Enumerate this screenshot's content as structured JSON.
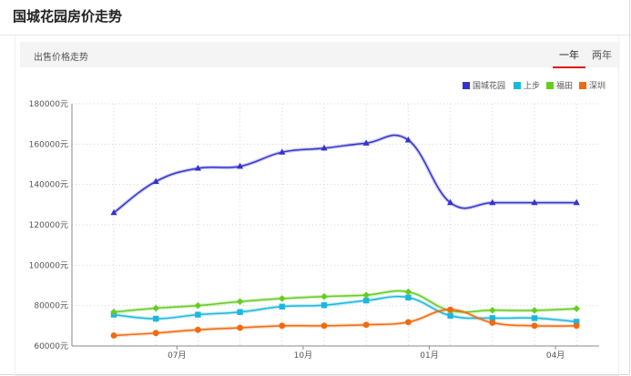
{
  "header": {
    "title": "国城花园房价走势"
  },
  "toolbar": {
    "subtitle": "出售价格走势",
    "tabs": [
      {
        "label": "一年",
        "active": true
      },
      {
        "label": "两年",
        "active": false
      }
    ],
    "accent_color": "#dd1111"
  },
  "chart_data": {
    "type": "line",
    "title": "",
    "xlabel": "",
    "ylabel": "",
    "ylim": [
      60000,
      180000
    ],
    "yticks": [
      60000,
      80000,
      100000,
      120000,
      140000,
      160000,
      180000
    ],
    "y_tick_suffix": "元",
    "x_index": [
      0,
      1,
      2,
      3,
      4,
      5,
      6,
      7,
      8,
      9,
      10,
      11
    ],
    "x_tick_labels": [
      {
        "index": 1,
        "label": "07月"
      },
      {
        "index": 4,
        "label": "10月"
      },
      {
        "index": 7,
        "label": "01月"
      },
      {
        "index": 10,
        "label": "04月"
      }
    ],
    "grid": true,
    "legend_position": "top-right",
    "series": [
      {
        "name": "国城花园",
        "color": "#3333cc",
        "marker": "triangle",
        "values": [
          126000,
          141500,
          148000,
          149000,
          156000,
          158000,
          160500,
          162000,
          131000,
          131000,
          131000,
          131000
        ]
      },
      {
        "name": "上步",
        "color": "#1ab8dd",
        "marker": "square",
        "values": [
          75500,
          73500,
          75500,
          76800,
          79500,
          80200,
          82500,
          84000,
          75000,
          73800,
          73800,
          72000
        ]
      },
      {
        "name": "福田",
        "color": "#66cc22",
        "marker": "diamond",
        "values": [
          76800,
          78700,
          80000,
          82000,
          83500,
          84500,
          85200,
          86800,
          77500,
          77700,
          77600,
          78500
        ]
      },
      {
        "name": "深圳",
        "color": "#f06a10",
        "marker": "circle",
        "values": [
          65200,
          66400,
          68000,
          69000,
          70000,
          70000,
          70500,
          71800,
          78000,
          71500,
          70000,
          70000
        ]
      }
    ]
  }
}
